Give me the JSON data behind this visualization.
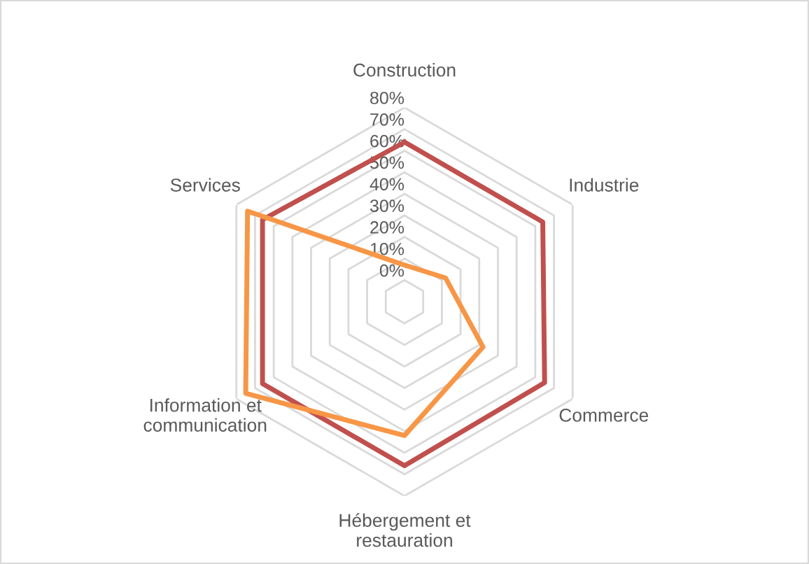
{
  "chart_data": {
    "type": "radar",
    "categories": [
      "Construction",
      "Industrie",
      "Commerce",
      "Hébergement et\nrestauration",
      "Information et\ncommunication",
      "Services"
    ],
    "series": [
      {
        "color": "#c0504d",
        "values": [
          64,
          64,
          65,
          66,
          66,
          66
        ]
      },
      {
        "color": "#f79646",
        "values": [
          7,
          12,
          32,
          52,
          75,
          74
        ]
      }
    ],
    "ylim": [
      -10,
      80
    ],
    "yticks": [
      {
        "value": 0,
        "label": "0%"
      },
      {
        "value": 10,
        "label": "10%"
      },
      {
        "value": 20,
        "label": "20%"
      },
      {
        "value": 30,
        "label": "30%"
      },
      {
        "value": 40,
        "label": "40%"
      },
      {
        "value": 50,
        "label": "50%"
      },
      {
        "value": 60,
        "label": "60%"
      },
      {
        "value": 70,
        "label": "70%"
      },
      {
        "value": 80,
        "label": "80%"
      }
    ],
    "grid": true,
    "legend": false,
    "marker": "none",
    "line_style": "solid"
  }
}
